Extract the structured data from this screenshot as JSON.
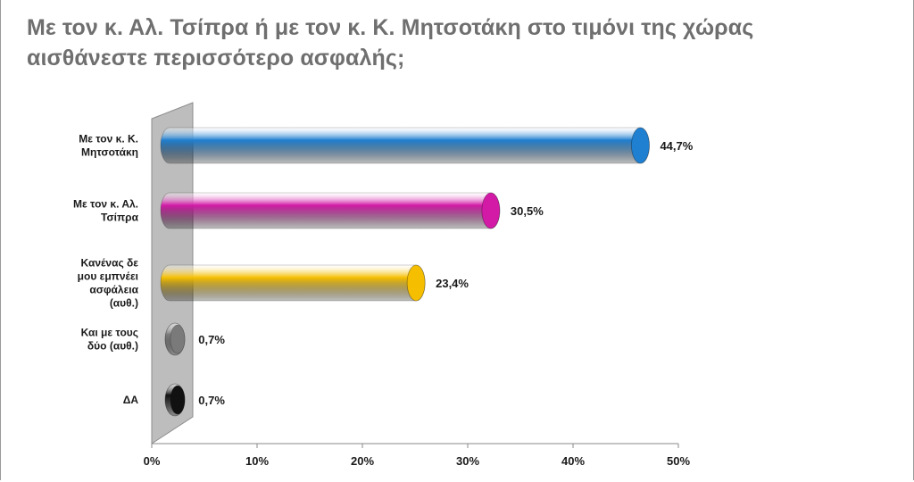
{
  "title_lines": [
    "Με τον κ. Αλ. Τσίπρα ή με τον κ. Κ. Μητσοτάκη στο τιμόνι της χώρας",
    "αισθάνεστε περισσότερο ασφαλής;"
  ],
  "chart_data": {
    "type": "bar",
    "orientation": "horizontal",
    "title": "Με τον κ. Αλ. Τσίπρα ή με τον κ. Κ. Μητσοτάκη στο τιμόνι της χώρας αισθάνεστε περισσότερο ασφαλής;",
    "categories": [
      [
        "Με τον κ. Κ.",
        "Μητσοτάκη"
      ],
      [
        "Με τον κ. Αλ.",
        "Τσίπρα"
      ],
      [
        "Κανένας δε",
        "μου εμπνέει",
        "ασφάλεια",
        "(αυθ.)"
      ],
      [
        "Και με τους",
        "δύο (αυθ.)"
      ],
      [
        "ΔΑ"
      ]
    ],
    "values": [
      44.7,
      30.5,
      23.4,
      0.7,
      0.7
    ],
    "value_labels": [
      "44,7%",
      "30,5%",
      "23,4%",
      "0,7%",
      "0,7%"
    ],
    "colors": [
      "#1f7fd0",
      "#d21aa6",
      "#f5bf00",
      "#7a7a7a",
      "#111111"
    ],
    "xlim": [
      0,
      50
    ],
    "ticks": [
      0,
      10,
      20,
      30,
      40,
      50
    ],
    "tick_labels": [
      "0%",
      "10%",
      "20%",
      "30%",
      "40%",
      "50%"
    ],
    "grid": false,
    "legend": "none"
  }
}
